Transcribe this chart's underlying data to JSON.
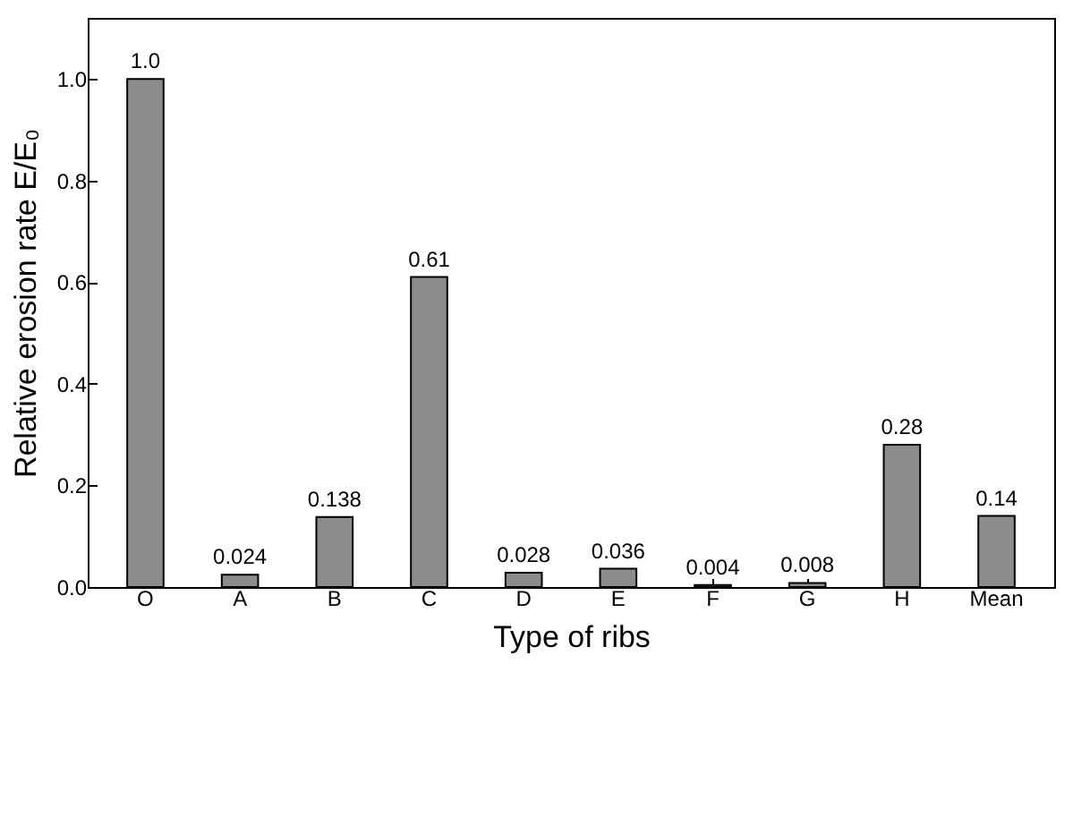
{
  "chart_data": {
    "type": "bar",
    "xlabel": "Type of ribs",
    "ylabel": "Relative erosion rate E/E₀",
    "categories": [
      "O",
      "A",
      "B",
      "C",
      "D",
      "E",
      "F",
      "G",
      "H",
      "Mean"
    ],
    "values": [
      1.0,
      0.024,
      0.138,
      0.61,
      0.028,
      0.036,
      0.004,
      0.008,
      0.28,
      0.14
    ],
    "value_labels": [
      "1.0",
      "0.024",
      "0.138",
      "0.61",
      "0.028",
      "0.036",
      "0.004",
      "0.008",
      "0.28",
      "0.14"
    ],
    "color": "#8c8c8c",
    "ylim": [
      0,
      1.12
    ],
    "yticks": [
      {
        "value": 0,
        "label": "0.0"
      },
      {
        "value": 0.2,
        "label": "0.2"
      },
      {
        "value": 0.4,
        "label": "0.4"
      },
      {
        "value": 0.6,
        "label": "0.6"
      },
      {
        "value": 0.8,
        "label": "0.8"
      },
      {
        "value": 1.0,
        "label": "1.0"
      }
    ],
    "grid": false
  }
}
